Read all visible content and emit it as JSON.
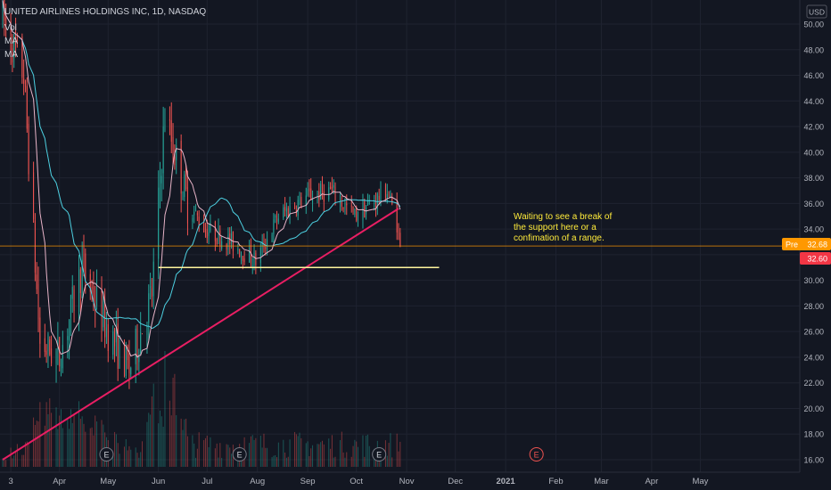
{
  "header": {
    "title": "UNITED AIRLINES HOLDINGS INC, 1D, NASDAQ",
    "indicators": [
      "Vol",
      "MA",
      "MA"
    ],
    "currency": "USD"
  },
  "price_badges": {
    "pre_label": "Pre",
    "pre_price": "32.68",
    "close_price": "32.60"
  },
  "annotation": {
    "lines": [
      "Waiting to see a break of",
      "the support here or a",
      "confimation of a range."
    ]
  },
  "colors": {
    "background": "#131722",
    "grid": "#1f2330",
    "up": "#26a69a",
    "down": "#ef5350",
    "ma_fast": "#e8b4c8",
    "ma_slow": "#4dd0e1",
    "trendline": "#e91e63",
    "support": "#fff59d",
    "pre_badge": "#ff9800",
    "close_badge": "#f23645",
    "axis_text": "#b2b5be",
    "annotation_text": "#ffeb3b"
  },
  "chart_data": {
    "type": "candlestick",
    "title": "UNITED AIRLINES HOLDINGS INC, 1D, NASDAQ",
    "ylim": [
      16,
      50
    ],
    "y_ticks": [
      "16.00",
      "18.00",
      "20.00",
      "22.00",
      "24.00",
      "26.00",
      "28.00",
      "30.00",
      "32.00",
      "34.00",
      "36.00",
      "38.00",
      "40.00",
      "42.00",
      "44.00",
      "46.00",
      "48.00",
      "50.00"
    ],
    "x_ticks": [
      "3",
      "Apr",
      "May",
      "Jun",
      "Jul",
      "Aug",
      "Sep",
      "Oct",
      "Nov",
      "Dec",
      "2021",
      "Feb",
      "Mar",
      "Apr",
      "May"
    ],
    "current_price": 32.6,
    "premarket_price": 32.68,
    "trendline": {
      "start": {
        "date": "2020-02-26",
        "price": 16.0
      },
      "end": {
        "date": "2020-10-27",
        "price": 35.6
      }
    },
    "support_level": {
      "price": 31.0,
      "from": "2020-06-01",
      "to": "2020-11-21"
    },
    "earnings_markers": [
      "E",
      "E",
      "E",
      "E"
    ],
    "anchors": [
      {
        "date": "2020-02-26",
        "price": 50.5
      },
      {
        "date": "2020-03-10",
        "price": 46.0
      },
      {
        "date": "2020-03-20",
        "price": 25.0
      },
      {
        "date": "2020-04-01",
        "price": 24.0
      },
      {
        "date": "2020-04-15",
        "price": 31.0
      },
      {
        "date": "2020-05-01",
        "price": 26.0
      },
      {
        "date": "2020-05-14",
        "price": 23.0
      },
      {
        "date": "2020-05-28",
        "price": 29.0
      },
      {
        "date": "2020-06-05",
        "price": 43.0
      },
      {
        "date": "2020-06-19",
        "price": 36.0
      },
      {
        "date": "2020-06-30",
        "price": 34.0
      },
      {
        "date": "2020-07-15",
        "price": 33.0
      },
      {
        "date": "2020-07-31",
        "price": 31.5
      },
      {
        "date": "2020-08-14",
        "price": 35.0
      },
      {
        "date": "2020-08-31",
        "price": 36.5
      },
      {
        "date": "2020-09-15",
        "price": 37.0
      },
      {
        "date": "2020-09-30",
        "price": 35.0
      },
      {
        "date": "2020-10-10",
        "price": 36.0
      },
      {
        "date": "2020-10-20",
        "price": 37.0
      },
      {
        "date": "2020-10-26",
        "price": 34.5
      },
      {
        "date": "2020-10-28",
        "price": 32.6
      }
    ]
  }
}
